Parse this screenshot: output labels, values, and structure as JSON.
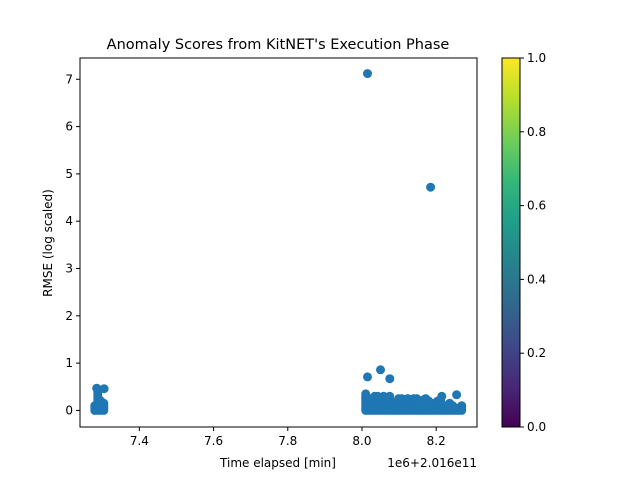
{
  "chart_data": {
    "type": "scatter",
    "title": "Anomaly Scores from KitNET's Execution Phase",
    "xlabel": "Time elapsed [min]",
    "ylabel": "RMSE (log scaled)",
    "x_offset_label": "1e6+2.016e11",
    "x_range": [
      7.24,
      8.31
    ],
    "y_range": [
      -0.35,
      7.45
    ],
    "x_ticks": [
      7.4,
      7.6,
      7.8,
      8.0,
      8.2
    ],
    "x_tick_labels": [
      "7.4",
      "7.6",
      "7.8",
      "8.0",
      "8.2"
    ],
    "y_ticks": [
      0,
      1,
      2,
      3,
      4,
      5,
      6,
      7
    ],
    "y_tick_labels": [
      "0",
      "1",
      "2",
      "3",
      "4",
      "5",
      "6",
      "7"
    ],
    "point_color": "#1f77b4",
    "grid": false,
    "clusters": [
      {
        "x_start": 7.28,
        "x_end": 7.31,
        "y_min": 0.0,
        "y_max": 0.48
      },
      {
        "x_start": 8.01,
        "x_end": 8.27,
        "y_min": 0.0,
        "y_max": 0.45
      }
    ],
    "points": [
      {
        "x": 8.015,
        "y": 7.12
      },
      {
        "x": 8.185,
        "y": 4.72
      },
      {
        "x": 8.05,
        "y": 0.86
      },
      {
        "x": 8.015,
        "y": 0.71
      },
      {
        "x": 8.075,
        "y": 0.67
      },
      {
        "x": 8.255,
        "y": 0.33
      },
      {
        "x": 8.215,
        "y": 0.3
      },
      {
        "x": 8.165,
        "y": 0.22
      },
      {
        "x": 7.285,
        "y": 0.47
      },
      {
        "x": 7.305,
        "y": 0.46
      }
    ],
    "colorbar": {
      "colormap": "viridis",
      "range": [
        0.0,
        1.0
      ],
      "ticks": [
        0.0,
        0.2,
        0.4,
        0.6,
        0.8,
        1.0
      ],
      "tick_labels": [
        "0.0",
        "0.2",
        "0.4",
        "0.6",
        "0.8",
        "1.0"
      ],
      "stops": [
        "#440154",
        "#482878",
        "#3e4989",
        "#31688e",
        "#26828e",
        "#1f9e89",
        "#35b779",
        "#6ece58",
        "#b5de2b",
        "#fde725"
      ]
    }
  }
}
